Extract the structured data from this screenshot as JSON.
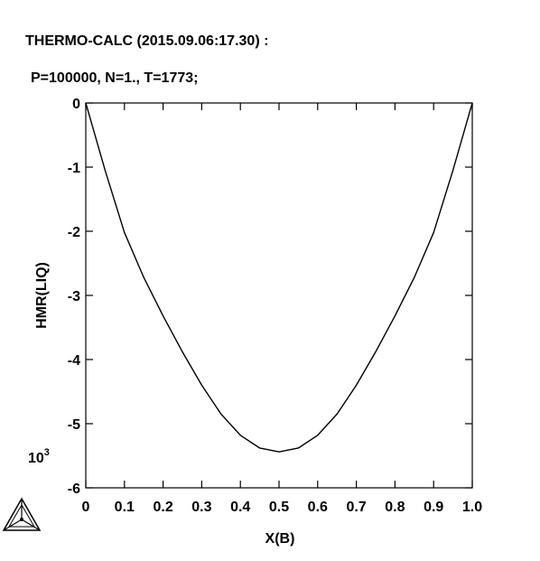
{
  "header": {
    "line1": "THERMO-CALC (2015.09.06:17.30) :",
    "line2": "P=100000, N=1., T=1773;"
  },
  "chart_data": {
    "type": "line",
    "title": "",
    "xlabel": "X(B)",
    "ylabel": "HMR(LIQ)",
    "y_scale_label": "10",
    "y_scale_exponent": "3",
    "xlim": [
      0,
      1
    ],
    "ylim": [
      -6,
      0
    ],
    "grid": false,
    "x_ticks": [
      0,
      0.1,
      0.2,
      0.3,
      0.4,
      0.5,
      0.6,
      0.7,
      0.8,
      0.9,
      1.0
    ],
    "x_tick_labels": [
      "0",
      "0.1",
      "0.2",
      "0.3",
      "0.4",
      "0.5",
      "0.6",
      "0.7",
      "0.8",
      "0.9",
      "1.0"
    ],
    "y_ticks": [
      0,
      -1,
      -2,
      -3,
      -4,
      -5,
      -6
    ],
    "y_tick_labels": [
      "0",
      "-1",
      "-2",
      "-3",
      "-4",
      "-5",
      "-6"
    ],
    "series": [
      {
        "x": [
          0,
          0.05,
          0.1,
          0.15,
          0.2,
          0.25,
          0.3,
          0.35,
          0.4,
          0.45,
          0.5,
          0.55,
          0.6,
          0.65,
          0.7,
          0.75,
          0.8,
          0.85,
          0.9,
          0.95,
          1.0
        ],
        "y": [
          0,
          -1.05,
          -2.02,
          -2.72,
          -3.32,
          -3.88,
          -4.4,
          -4.85,
          -5.18,
          -5.38,
          -5.44,
          -5.38,
          -5.18,
          -4.85,
          -4.4,
          -3.88,
          -3.32,
          -2.72,
          -2.02,
          -1.05,
          0
        ]
      }
    ]
  },
  "logo": {
    "name": "thermo-calc-logo-icon"
  }
}
